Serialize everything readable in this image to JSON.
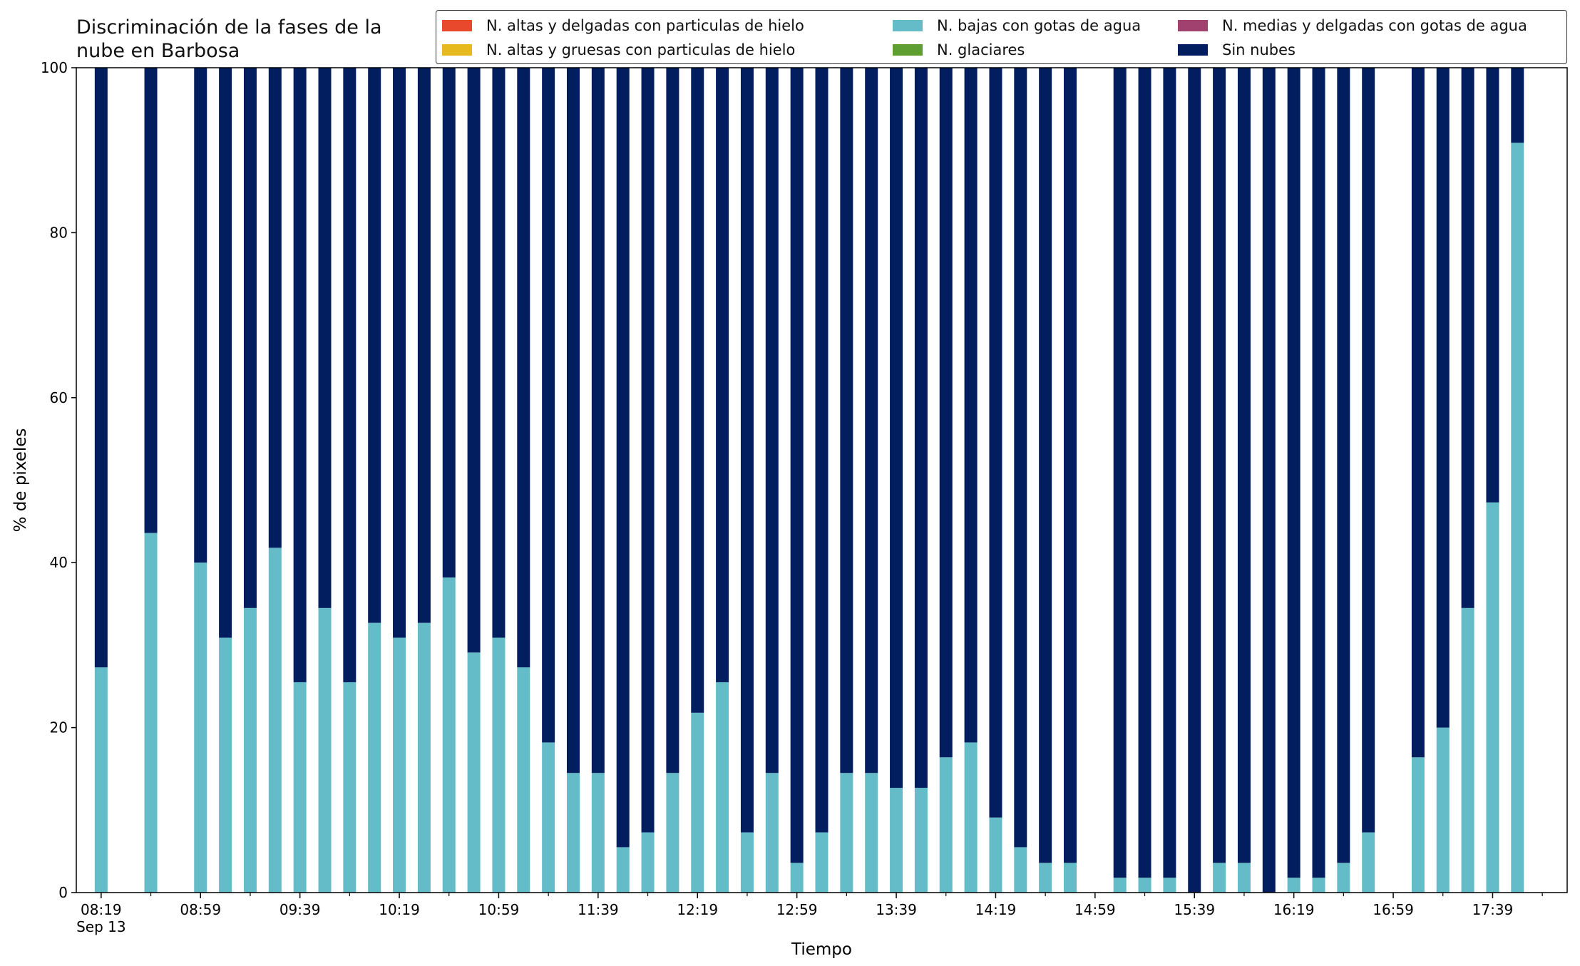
{
  "chart_data": {
    "type": "bar",
    "stacked": true,
    "title": "Discriminación de la fases de la\nnube en Barbosa",
    "xlabel": "Tiempo",
    "ylabel": "% de pixeles",
    "ylim": [
      0,
      100
    ],
    "yticks": [
      0,
      20,
      40,
      60,
      80,
      100
    ],
    "xlim": [
      "08:09",
      "18:09"
    ],
    "xtick_labels": [
      "08:19",
      "08:59",
      "09:39",
      "10:19",
      "10:59",
      "11:39",
      "12:19",
      "12:59",
      "13:39",
      "14:19",
      "14:59",
      "15:39",
      "16:19",
      "16:59",
      "17:39"
    ],
    "xtick_minor_labels": [
      "",
      "",
      "",
      "",
      "",
      "",
      "",
      "",
      "",
      "",
      "",
      "",
      "",
      "",
      ""
    ],
    "date_label": "Sep 13",
    "grid": false,
    "legend_position": "top-right",
    "legend": [
      {
        "name": "N. altas y delgadas con particulas de hielo",
        "color": "#e8492c"
      },
      {
        "name": "N. altas y gruesas con particulas de hielo",
        "color": "#e6b91e"
      },
      {
        "name": "N. bajas con gotas de agua",
        "color": "#64bcc9"
      },
      {
        "name": "N. glaciares",
        "color": "#5f9e30"
      },
      {
        "name": "N. medias y delgadas con gotas de agua",
        "color": "#a0416f"
      },
      {
        "name": "Sin nubes",
        "color": "#021e5e"
      }
    ],
    "x": [
      "08:19",
      "08:39",
      "08:59",
      "09:09",
      "09:19",
      "09:29",
      "09:39",
      "09:49",
      "09:59",
      "10:09",
      "10:19",
      "10:29",
      "10:39",
      "10:49",
      "10:59",
      "11:09",
      "11:19",
      "11:29",
      "11:39",
      "11:49",
      "11:59",
      "12:09",
      "12:19",
      "12:29",
      "12:39",
      "12:49",
      "12:59",
      "13:09",
      "13:19",
      "13:29",
      "13:39",
      "13:49",
      "13:59",
      "14:09",
      "14:19",
      "14:29",
      "14:39",
      "14:49",
      "15:09",
      "15:19",
      "15:29",
      "15:39",
      "15:49",
      "15:59",
      "16:09",
      "16:19",
      "16:29",
      "16:39",
      "16:49",
      "17:09",
      "17:19",
      "17:29",
      "17:39",
      "17:49"
    ],
    "series": [
      {
        "name": "N. altas y delgadas con particulas de hielo",
        "color": "#e8492c",
        "values": [
          0,
          0,
          0,
          0,
          0,
          0,
          0,
          0,
          0,
          0,
          0,
          0,
          0,
          0,
          0,
          0,
          0,
          0,
          0,
          0,
          0,
          0,
          0,
          0,
          0,
          0,
          0,
          0,
          0,
          0,
          0,
          0,
          0,
          0,
          0,
          0,
          0,
          0,
          0,
          0,
          0,
          0,
          0,
          0,
          0,
          0,
          0,
          0,
          0,
          0,
          0,
          0,
          0,
          0
        ]
      },
      {
        "name": "N. altas y gruesas con particulas de hielo",
        "color": "#e6b91e",
        "values": [
          0,
          0,
          0,
          0,
          0,
          0,
          0,
          0,
          0,
          0,
          0,
          0,
          0,
          0,
          0,
          0,
          0,
          0,
          0,
          0,
          0,
          0,
          0,
          0,
          0,
          0,
          0,
          0,
          0,
          0,
          0,
          0,
          0,
          0,
          0,
          0,
          0,
          0,
          0,
          0,
          0,
          0,
          0,
          0,
          0,
          0,
          0,
          0,
          0,
          0,
          0,
          0,
          0,
          0
        ]
      },
      {
        "name": "N. bajas con gotas de agua",
        "color": "#64bcc9",
        "values": [
          27.3,
          43.6,
          40.0,
          30.9,
          34.5,
          41.8,
          25.5,
          34.5,
          25.5,
          32.7,
          30.9,
          32.7,
          38.2,
          29.1,
          30.9,
          27.3,
          18.2,
          14.5,
          14.5,
          5.5,
          7.3,
          14.5,
          21.8,
          25.5,
          7.3,
          14.5,
          3.6,
          7.3,
          14.5,
          14.5,
          12.7,
          12.7,
          16.4,
          18.2,
          9.1,
          5.5,
          3.6,
          3.6,
          1.8,
          1.8,
          1.8,
          0.0,
          3.6,
          3.6,
          0.0,
          1.8,
          1.8,
          3.6,
          7.3,
          16.4,
          20.0,
          34.5,
          47.3,
          90.9
        ]
      },
      {
        "name": "N. glaciares",
        "color": "#5f9e30",
        "values": [
          0,
          0,
          0,
          0,
          0,
          0,
          0,
          0,
          0,
          0,
          0,
          0,
          0,
          0,
          0,
          0,
          0,
          0,
          0,
          0,
          0,
          0,
          0,
          0,
          0,
          0,
          0,
          0,
          0,
          0,
          0,
          0,
          0,
          0,
          0,
          0,
          0,
          0,
          0,
          0,
          0,
          0,
          0,
          0,
          0,
          0,
          0,
          0,
          0,
          0,
          0,
          0,
          0,
          0
        ]
      },
      {
        "name": "N. medias y delgadas con gotas de agua",
        "color": "#a0416f",
        "values": [
          0,
          0,
          0,
          0,
          0,
          0,
          0,
          0,
          0,
          0,
          0,
          0,
          0,
          0,
          0,
          0,
          0,
          0,
          0,
          0,
          0,
          0,
          0,
          0,
          0,
          0,
          0,
          0,
          0,
          0,
          0,
          0,
          0,
          0,
          0,
          0,
          0,
          0,
          0,
          0,
          0,
          0,
          0,
          0,
          0,
          0,
          0,
          0,
          0,
          0,
          0,
          0,
          0,
          0
        ]
      },
      {
        "name": "Sin nubes",
        "color": "#021e5e",
        "values": [
          72.7,
          56.4,
          60.0,
          69.1,
          65.5,
          58.2,
          74.5,
          65.5,
          74.5,
          67.3,
          69.1,
          67.3,
          61.8,
          70.9,
          69.1,
          72.7,
          81.8,
          85.5,
          85.5,
          94.5,
          92.7,
          85.5,
          78.2,
          74.5,
          92.7,
          85.5,
          96.4,
          92.7,
          85.5,
          85.5,
          87.3,
          87.3,
          83.6,
          81.8,
          90.9,
          94.5,
          96.4,
          96.4,
          98.2,
          98.2,
          98.2,
          100.0,
          96.4,
          96.4,
          100.0,
          98.2,
          98.2,
          96.4,
          92.7,
          83.6,
          80.0,
          65.5,
          52.7,
          9.1
        ]
      }
    ]
  }
}
